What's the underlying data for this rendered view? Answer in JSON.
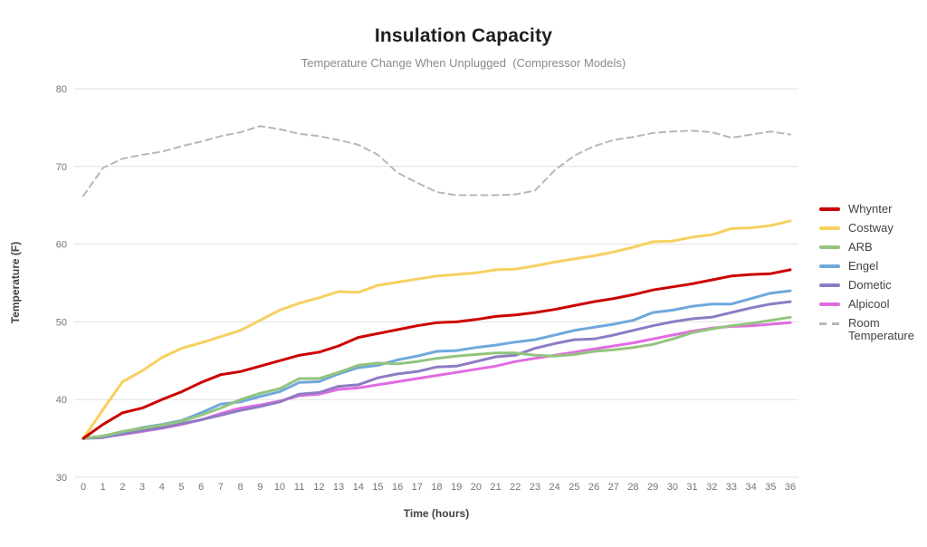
{
  "chart": {
    "title": "Insulation Capacity",
    "subtitle": "Temperature Change When Unplugged  (Compressor Models)",
    "x_axis_title": "Time (hours)",
    "y_axis_title": "Temperature (F)"
  },
  "chart_data": {
    "type": "line",
    "title": "Insulation Capacity",
    "subtitle": "Temperature Change When Unplugged  (Compressor Models)",
    "xlabel": "Time (hours)",
    "ylabel": "Temperature (F)",
    "x": [
      0,
      1,
      2,
      3,
      4,
      5,
      6,
      7,
      8,
      9,
      10,
      11,
      12,
      13,
      14,
      15,
      16,
      17,
      18,
      19,
      20,
      21,
      22,
      23,
      24,
      25,
      26,
      27,
      28,
      29,
      30,
      31,
      32,
      33,
      34,
      35,
      36
    ],
    "xlim": [
      0,
      36
    ],
    "ylim": [
      30,
      80
    ],
    "yticks": [
      30,
      40,
      50,
      60,
      70,
      80
    ],
    "grid": "horizontal",
    "grid_color": "#e0e0e0",
    "legend_position": "right",
    "series": [
      {
        "name": "Whynter",
        "color": "#cc0000",
        "style": "solid",
        "values": [
          35,
          36.8,
          38.3,
          38.9,
          40,
          41,
          42.2,
          43.2,
          43.6,
          44.3,
          45,
          45.7,
          46.1,
          46.9,
          48,
          48.5,
          49,
          49.5,
          49.9,
          50,
          50.3,
          50.7,
          50.9,
          51.2,
          51.6,
          52.1,
          52.6,
          53,
          53.5,
          54.1,
          54.5,
          54.9,
          55.4,
          55.9,
          56.1,
          56.2,
          56.7
        ]
      },
      {
        "name": "Costway",
        "color": "#f7d060",
        "style": "solid",
        "values": [
          35,
          38.7,
          42.3,
          43.7,
          45.4,
          46.6,
          47.3,
          48.1,
          48.9,
          50.2,
          51.5,
          52.4,
          53.1,
          53.9,
          53.8,
          54.7,
          55.1,
          55.5,
          55.9,
          56.1,
          56.3,
          56.7,
          56.8,
          57.2,
          57.7,
          58.1,
          58.5,
          59,
          59.6,
          60.3,
          60.4,
          60.9,
          61.2,
          62,
          62.1,
          62.4,
          63
        ]
      },
      {
        "name": "ARB",
        "color": "#93c47d",
        "style": "solid",
        "values": [
          35,
          35.3,
          35.9,
          36.3,
          36.7,
          37.2,
          38,
          38.9,
          40,
          40.8,
          41.4,
          42.7,
          42.7,
          43.5,
          44.4,
          44.7,
          44.6,
          44.9,
          45.3,
          45.6,
          45.8,
          46,
          46,
          45.7,
          45.6,
          45.8,
          46.2,
          46.4,
          46.7,
          47.1,
          47.8,
          48.6,
          49.1,
          49.5,
          49.8,
          50.2,
          50.6
        ]
      },
      {
        "name": "Engel",
        "color": "#6fa8dc",
        "style": "solid",
        "values": [
          35,
          35.3,
          35.8,
          36.4,
          36.8,
          37.3,
          38.3,
          39.4,
          39.7,
          40.4,
          41,
          42.2,
          42.3,
          43.3,
          44.1,
          44.4,
          45.1,
          45.6,
          46.2,
          46.3,
          46.7,
          47,
          47.4,
          47.7,
          48.3,
          48.9,
          49.3,
          49.7,
          50.2,
          51.2,
          51.5,
          52,
          52.3,
          52.3,
          53,
          53.7,
          54
        ]
      },
      {
        "name": "Dometic",
        "color": "#8e7cc3",
        "style": "solid",
        "values": [
          35,
          35.1,
          35.6,
          36,
          36.4,
          36.9,
          37.4,
          38,
          38.6,
          39.1,
          39.7,
          40.7,
          40.9,
          41.7,
          41.9,
          42.8,
          43.3,
          43.6,
          44.2,
          44.3,
          44.9,
          45.5,
          45.7,
          46.6,
          47.2,
          47.7,
          47.8,
          48.3,
          48.9,
          49.5,
          50,
          50.4,
          50.6,
          51.2,
          51.8,
          52.3,
          52.6
        ]
      },
      {
        "name": "Alpicool",
        "color": "#e06ce0",
        "style": "solid",
        "values": [
          35,
          35.2,
          35.5,
          35.9,
          36.3,
          36.8,
          37.4,
          38.2,
          38.9,
          39.3,
          39.8,
          40.5,
          40.7,
          41.3,
          41.5,
          41.9,
          42.3,
          42.7,
          43.1,
          43.5,
          43.9,
          44.3,
          44.9,
          45.3,
          45.7,
          46.1,
          46.5,
          46.9,
          47.3,
          47.8,
          48.3,
          48.8,
          49.2,
          49.4,
          49.5,
          49.7,
          49.9
        ]
      },
      {
        "name": "Room Temperature",
        "color": "#b7b7b7",
        "style": "dashed",
        "values": [
          66.2,
          69.8,
          71,
          71.5,
          71.9,
          72.6,
          73.2,
          73.9,
          74.4,
          75.2,
          74.8,
          74.2,
          73.9,
          73.4,
          72.8,
          71.5,
          69.2,
          67.9,
          66.7,
          66.3,
          66.3,
          66.3,
          66.4,
          66.9,
          69.5,
          71.4,
          72.6,
          73.4,
          73.8,
          74.3,
          74.5,
          74.6,
          74.4,
          73.7,
          74.1,
          74.5,
          74.1
        ]
      }
    ]
  }
}
